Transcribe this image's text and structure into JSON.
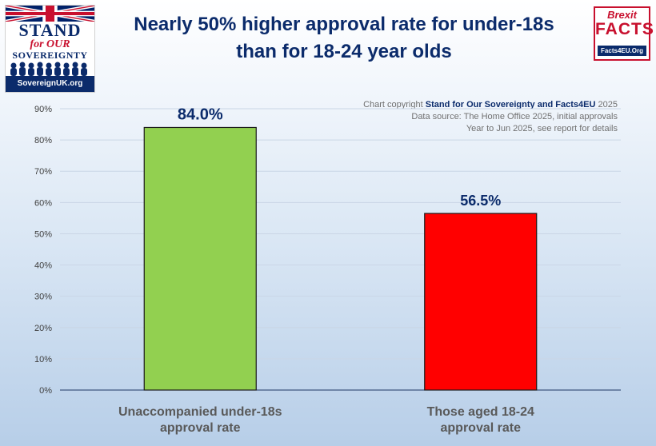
{
  "logos": {
    "left": {
      "line1": "STAND",
      "line2": "for OUR",
      "line3": "SOVEREIGNTY",
      "url": "SovereignUK.org",
      "icons": [
        "union-jack-flag",
        "crowd-silhouette"
      ]
    },
    "right": {
      "line1": "Brexit",
      "line2": "FACTS",
      "url": "Facts4EU.Org"
    }
  },
  "copyright": {
    "prefix": "Chart copyright",
    "owner": "Stand for Our Sovereignty and Facts4EU",
    "year": "2025",
    "source_line": "Data source: The Home Office 2025, initial approvals",
    "period_line": "Year to Jun 2025, see report for details"
  },
  "colors": {
    "title": "#0b2b6b",
    "bar1": "#92d050",
    "bar2": "#ff0000",
    "axis_text": "#404040",
    "label_text": "#595959"
  },
  "chart_data": {
    "type": "bar",
    "title_line1": "Nearly 50% higher approval rate for under-18s",
    "title_line2": "than for 18-24 year olds",
    "categories": [
      [
        "Unaccompanied under-18s",
        "approval rate"
      ],
      [
        "Those aged 18-24",
        "approval rate"
      ]
    ],
    "values": [
      84.0,
      56.5
    ],
    "value_labels": [
      "84.0%",
      "56.5%"
    ],
    "bar_colors": [
      "#92d050",
      "#ff0000"
    ],
    "ylim": [
      0,
      90
    ],
    "yticks": [
      0,
      10,
      20,
      30,
      40,
      50,
      60,
      70,
      80,
      90
    ],
    "ytick_labels": [
      "0%",
      "10%",
      "20%",
      "30%",
      "40%",
      "50%",
      "60%",
      "70%",
      "80%",
      "90%"
    ],
    "grid": true,
    "legend": "none"
  }
}
